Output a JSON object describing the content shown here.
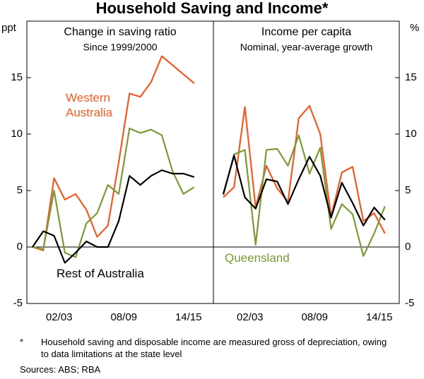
{
  "title": "Household Saving and Income*",
  "chart_data": [
    {
      "type": "line",
      "title": "Change in saving ratio",
      "subtitle": "Since 1999/2000",
      "y_unit": "ppt",
      "y_axis_side": "left",
      "categories": [
        null,
        null,
        null,
        "02/03",
        null,
        null,
        null,
        null,
        null,
        "08/09",
        null,
        null,
        null,
        null,
        null,
        "14/15"
      ],
      "ylim": [
        -5,
        20
      ],
      "yticks": [
        -5,
        0,
        5,
        10,
        15
      ],
      "series": [
        {
          "name": "Western Australia",
          "color": "#f15a22",
          "values": [
            0,
            -0.3,
            6.1,
            4.2,
            4.7,
            3.3,
            0.9,
            1.9,
            7.5,
            13.6,
            13.3,
            14.6,
            16.9,
            16.1,
            15.3,
            14.5
          ]
        },
        {
          "color": "#7a9a35",
          "values": [
            0,
            -0.2,
            5.0,
            -0.5,
            -0.9,
            2.1,
            3.0,
            5.5,
            4.7,
            10.5,
            10.1,
            10.4,
            9.9,
            6.7,
            4.7,
            5.3
          ]
        },
        {
          "name": "Rest of Australia",
          "color": "#000000",
          "values": [
            0,
            1.4,
            1.0,
            -1.4,
            -0.5,
            0.5,
            0,
            0,
            2.3,
            6.3,
            5.5,
            6.3,
            6.8,
            6.5,
            6.5,
            6.2
          ]
        }
      ]
    },
    {
      "type": "line",
      "title": "Income per capita",
      "subtitle": "Nominal, year-average growth",
      "y_unit": "%",
      "y_axis_side": "right",
      "categories": [
        null,
        null,
        null,
        "02/03",
        null,
        null,
        null,
        null,
        null,
        "08/09",
        null,
        null,
        null,
        null,
        null,
        "14/15"
      ],
      "ylim": [
        -5,
        20
      ],
      "yticks": [
        -5,
        0,
        5,
        10,
        15
      ],
      "series": [
        {
          "color": "#f15a22",
          "values": [
            4.4,
            5.3,
            12.4,
            3.5,
            7.2,
            5.2,
            4.0,
            11.4,
            12.5,
            10.0,
            2.7,
            6.6,
            7.1,
            2.3,
            3.0,
            1.2
          ]
        },
        {
          "name": "Queensland",
          "color": "#7a9a35",
          "values": [
            4.6,
            8.2,
            8.6,
            0.2,
            8.6,
            8.7,
            7.2,
            9.9,
            6.5,
            8.8,
            1.6,
            3.8,
            2.9,
            -0.8,
            1.2,
            3.6
          ]
        },
        {
          "color": "#000000",
          "values": [
            4.7,
            8.1,
            4.4,
            3.4,
            6.0,
            5.8,
            3.8,
            6.0,
            8.0,
            6.3,
            2.6,
            5.7,
            3.9,
            1.9,
            3.5,
            2.4
          ]
        }
      ]
    }
  ],
  "footnote": {
    "marker": "*",
    "text": "Household saving and disposable income are measured gross of depreciation, owing to data limitations at the state level"
  },
  "sources": "Sources: ABS; RBA"
}
